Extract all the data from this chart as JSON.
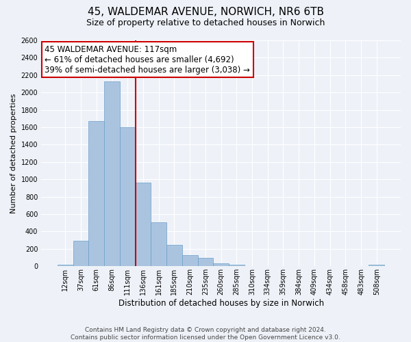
{
  "title1": "45, WALDEMAR AVENUE, NORWICH, NR6 6TB",
  "title2": "Size of property relative to detached houses in Norwich",
  "xlabel": "Distribution of detached houses by size in Norwich",
  "ylabel": "Number of detached properties",
  "bin_labels": [
    "12sqm",
    "37sqm",
    "61sqm",
    "86sqm",
    "111sqm",
    "136sqm",
    "161sqm",
    "185sqm",
    "210sqm",
    "235sqm",
    "260sqm",
    "285sqm",
    "310sqm",
    "334sqm",
    "359sqm",
    "384sqm",
    "409sqm",
    "434sqm",
    "458sqm",
    "483sqm",
    "508sqm"
  ],
  "bar_values": [
    20,
    295,
    1670,
    2130,
    1600,
    965,
    505,
    250,
    125,
    95,
    30,
    15,
    5,
    5,
    5,
    0,
    0,
    0,
    0,
    0,
    20
  ],
  "bar_color": "#aac4e0",
  "bar_edge_color": "#6a9ec8",
  "vline_color": "#cc0000",
  "annotation_line1": "45 WALDEMAR AVENUE: 117sqm",
  "annotation_line2": "← 61% of detached houses are smaller (4,692)",
  "annotation_line3": "39% of semi-detached houses are larger (3,038) →",
  "annotation_box_color": "#ffffff",
  "annotation_border_color": "#cc0000",
  "ylim": [
    0,
    2600
  ],
  "yticks": [
    0,
    200,
    400,
    600,
    800,
    1000,
    1200,
    1400,
    1600,
    1800,
    2000,
    2200,
    2400,
    2600
  ],
  "footer1": "Contains HM Land Registry data © Crown copyright and database right 2024.",
  "footer2": "Contains public sector information licensed under the Open Government Licence v3.0.",
  "background_color": "#eef2f8",
  "grid_color": "#ffffff",
  "title1_fontsize": 11,
  "title2_fontsize": 9,
  "annotation_fontsize": 8.5,
  "ylabel_fontsize": 8,
  "xlabel_fontsize": 8.5,
  "footer_fontsize": 6.5,
  "tick_fontsize": 7
}
